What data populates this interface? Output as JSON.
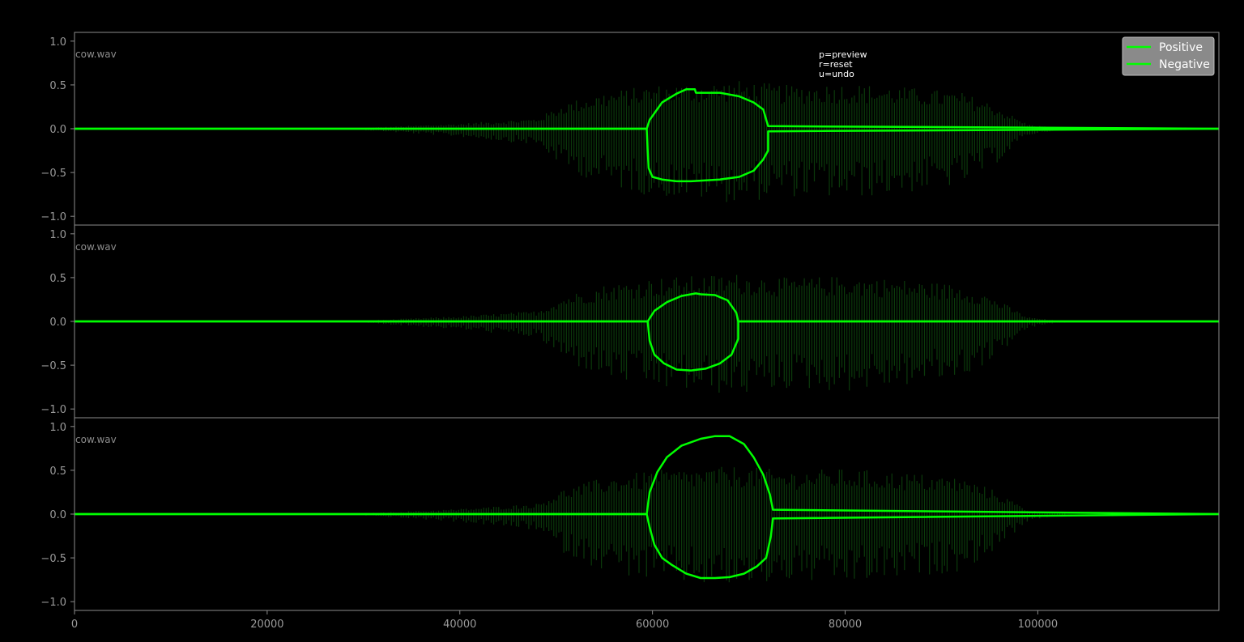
{
  "help_text": [
    "p=preview",
    "r=reset",
    "u=undo"
  ],
  "legend": {
    "placement": "top-right",
    "entries": [
      {
        "label": "Positive",
        "color": "#00ff00"
      },
      {
        "label": "Negative",
        "color": "#00ff00"
      }
    ]
  },
  "colors": {
    "background": "#000000",
    "frame": "#8c8c8c",
    "waveform": "#0b3a0b",
    "envelope": "#00ff00",
    "legend_bg": "#8a8a8a"
  },
  "chart_data": [
    {
      "type": "line",
      "file_label": "cow.wav",
      "xlim": [
        0,
        118800
      ],
      "ylim": [
        -1.1,
        1.1
      ],
      "yticks": [
        "1.0",
        "0.5",
        "0.0",
        "−0.5",
        "−1.0"
      ],
      "ytick_values": [
        1.0,
        0.5,
        0.0,
        -0.5,
        -1.0
      ],
      "series": [
        {
          "name": "Positive",
          "x": [
            0,
            59400,
            59700,
            61000,
            62500,
            63500,
            64400,
            64500,
            67000,
            69000,
            70500,
            71500,
            72000,
            118800
          ],
          "y": [
            0,
            0,
            0.1,
            0.3,
            0.4,
            0.45,
            0.45,
            0.41,
            0.41,
            0.37,
            0.3,
            0.22,
            0.03,
            0
          ]
        },
        {
          "name": "Negative",
          "x": [
            0,
            59400,
            59500,
            59600,
            60000,
            61000,
            62500,
            64000,
            67000,
            69000,
            70500,
            71500,
            72000,
            72000,
            118800
          ],
          "y": [
            0,
            0,
            -0.25,
            -0.45,
            -0.55,
            -0.58,
            -0.6,
            -0.6,
            -0.58,
            -0.55,
            -0.48,
            -0.35,
            -0.25,
            -0.03,
            0
          ]
        }
      ]
    },
    {
      "type": "line",
      "file_label": "cow.wav",
      "xlim": [
        0,
        118800
      ],
      "ylim": [
        -1.1,
        1.1
      ],
      "yticks": [
        "1.0",
        "0.5",
        "0.0",
        "−0.5",
        "−1.0"
      ],
      "ytick_values": [
        1.0,
        0.5,
        0.0,
        -0.5,
        -1.0
      ],
      "series": [
        {
          "name": "Positive",
          "x": [
            0,
            59500,
            60200,
            61500,
            63000,
            64500,
            65000,
            66500,
            67800,
            68700,
            68900,
            118800
          ],
          "y": [
            0,
            0,
            0.12,
            0.22,
            0.29,
            0.32,
            0.31,
            0.3,
            0.24,
            0.1,
            0,
            0
          ]
        },
        {
          "name": "Negative",
          "x": [
            0,
            59500,
            59700,
            60200,
            61200,
            62500,
            64000,
            65500,
            67000,
            68200,
            68900,
            68900,
            118800
          ],
          "y": [
            0,
            0,
            -0.22,
            -0.38,
            -0.48,
            -0.55,
            -0.56,
            -0.54,
            -0.48,
            -0.38,
            -0.2,
            0,
            0
          ]
        }
      ]
    },
    {
      "type": "line",
      "file_label": "cow.wav",
      "xlim": [
        0,
        118800
      ],
      "ylim": [
        -1.1,
        1.1
      ],
      "yticks": [
        "1.0",
        "0.5",
        "0.0",
        "−0.5",
        "−1.0"
      ],
      "ytick_values": [
        1.0,
        0.5,
        0.0,
        -0.5,
        -1.0
      ],
      "x_axis_visible": true,
      "xticks": [
        "0",
        "20000",
        "40000",
        "60000",
        "80000",
        "100000"
      ],
      "xtick_values": [
        0,
        20000,
        40000,
        60000,
        80000,
        100000
      ],
      "series": [
        {
          "name": "Positive",
          "x": [
            0,
            59400,
            59700,
            60500,
            61500,
            63000,
            65000,
            66500,
            68000,
            69500,
            70500,
            71500,
            72200,
            72500,
            118800
          ],
          "y": [
            0,
            0,
            0.25,
            0.48,
            0.65,
            0.78,
            0.86,
            0.89,
            0.89,
            0.8,
            0.65,
            0.45,
            0.22,
            0.05,
            0
          ]
        },
        {
          "name": "Negative",
          "x": [
            0,
            59400,
            59700,
            60200,
            61000,
            62000,
            63500,
            65000,
            66500,
            68000,
            69500,
            70800,
            71800,
            72300,
            72500,
            118800
          ],
          "y": [
            0,
            0,
            -0.15,
            -0.35,
            -0.5,
            -0.58,
            -0.68,
            -0.73,
            -0.73,
            -0.72,
            -0.68,
            -0.6,
            -0.5,
            -0.25,
            -0.05,
            0
          ]
        }
      ]
    }
  ]
}
